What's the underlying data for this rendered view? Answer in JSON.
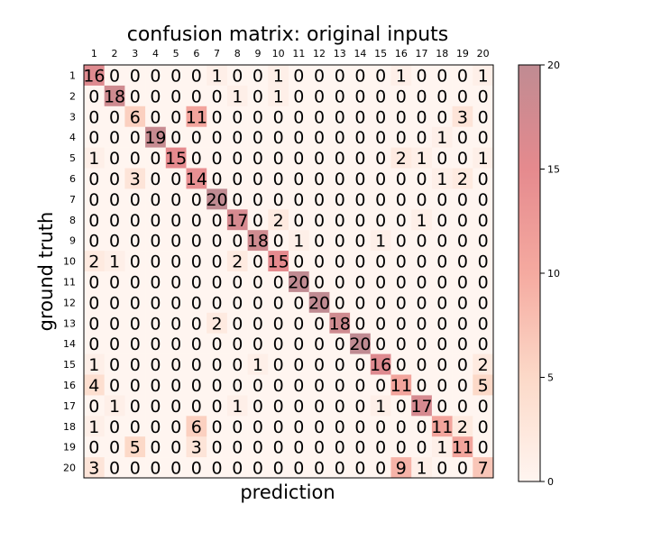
{
  "chart_data": {
    "type": "heatmap",
    "title": "confusion matrix: original inputs",
    "xlabel": "prediction",
    "ylabel": "ground truth",
    "x_categories": [
      "1",
      "2",
      "3",
      "4",
      "5",
      "6",
      "7",
      "8",
      "9",
      "10",
      "11",
      "12",
      "13",
      "14",
      "15",
      "16",
      "17",
      "18",
      "19",
      "20"
    ],
    "y_categories": [
      "1",
      "2",
      "3",
      "4",
      "5",
      "6",
      "7",
      "8",
      "9",
      "10",
      "11",
      "12",
      "13",
      "14",
      "15",
      "16",
      "17",
      "18",
      "19",
      "20"
    ],
    "values": [
      [
        16,
        0,
        0,
        0,
        0,
        0,
        1,
        0,
        0,
        1,
        0,
        0,
        0,
        0,
        0,
        1,
        0,
        0,
        0,
        1
      ],
      [
        0,
        18,
        0,
        0,
        0,
        0,
        0,
        1,
        0,
        1,
        0,
        0,
        0,
        0,
        0,
        0,
        0,
        0,
        0,
        0
      ],
      [
        0,
        0,
        6,
        0,
        0,
        11,
        0,
        0,
        0,
        0,
        0,
        0,
        0,
        0,
        0,
        0,
        0,
        0,
        3,
        0
      ],
      [
        0,
        0,
        0,
        19,
        0,
        0,
        0,
        0,
        0,
        0,
        0,
        0,
        0,
        0,
        0,
        0,
        0,
        1,
        0,
        0
      ],
      [
        1,
        0,
        0,
        0,
        15,
        0,
        0,
        0,
        0,
        0,
        0,
        0,
        0,
        0,
        0,
        2,
        1,
        0,
        0,
        1
      ],
      [
        0,
        0,
        3,
        0,
        0,
        14,
        0,
        0,
        0,
        0,
        0,
        0,
        0,
        0,
        0,
        0,
        0,
        1,
        2,
        0
      ],
      [
        0,
        0,
        0,
        0,
        0,
        0,
        20,
        0,
        0,
        0,
        0,
        0,
        0,
        0,
        0,
        0,
        0,
        0,
        0,
        0
      ],
      [
        0,
        0,
        0,
        0,
        0,
        0,
        0,
        17,
        0,
        2,
        0,
        0,
        0,
        0,
        0,
        0,
        1,
        0,
        0,
        0
      ],
      [
        0,
        0,
        0,
        0,
        0,
        0,
        0,
        0,
        18,
        0,
        1,
        0,
        0,
        0,
        1,
        0,
        0,
        0,
        0,
        0
      ],
      [
        2,
        1,
        0,
        0,
        0,
        0,
        0,
        2,
        0,
        15,
        0,
        0,
        0,
        0,
        0,
        0,
        0,
        0,
        0,
        0
      ],
      [
        0,
        0,
        0,
        0,
        0,
        0,
        0,
        0,
        0,
        0,
        20,
        0,
        0,
        0,
        0,
        0,
        0,
        0,
        0,
        0
      ],
      [
        0,
        0,
        0,
        0,
        0,
        0,
        0,
        0,
        0,
        0,
        0,
        20,
        0,
        0,
        0,
        0,
        0,
        0,
        0,
        0
      ],
      [
        0,
        0,
        0,
        0,
        0,
        0,
        2,
        0,
        0,
        0,
        0,
        0,
        18,
        0,
        0,
        0,
        0,
        0,
        0,
        0
      ],
      [
        0,
        0,
        0,
        0,
        0,
        0,
        0,
        0,
        0,
        0,
        0,
        0,
        0,
        20,
        0,
        0,
        0,
        0,
        0,
        0
      ],
      [
        1,
        0,
        0,
        0,
        0,
        0,
        0,
        0,
        1,
        0,
        0,
        0,
        0,
        0,
        16,
        0,
        0,
        0,
        0,
        2
      ],
      [
        4,
        0,
        0,
        0,
        0,
        0,
        0,
        0,
        0,
        0,
        0,
        0,
        0,
        0,
        0,
        11,
        0,
        0,
        0,
        5
      ],
      [
        0,
        1,
        0,
        0,
        0,
        0,
        0,
        1,
        0,
        0,
        0,
        0,
        0,
        0,
        1,
        0,
        17,
        0,
        0,
        0
      ],
      [
        1,
        0,
        0,
        0,
        0,
        6,
        0,
        0,
        0,
        0,
        0,
        0,
        0,
        0,
        0,
        0,
        0,
        11,
        2,
        0
      ],
      [
        0,
        0,
        5,
        0,
        0,
        3,
        0,
        0,
        0,
        0,
        0,
        0,
        0,
        0,
        0,
        0,
        0,
        1,
        11,
        0
      ],
      [
        3,
        0,
        0,
        0,
        0,
        0,
        0,
        0,
        0,
        0,
        0,
        0,
        0,
        0,
        0,
        9,
        1,
        0,
        0,
        7
      ]
    ],
    "colorbar": {
      "min": 0,
      "max": 20,
      "ticks": [
        0,
        5,
        10,
        15,
        20
      ]
    },
    "colors": {
      "low": "#fff5f0",
      "high": "#c08b92"
    }
  }
}
